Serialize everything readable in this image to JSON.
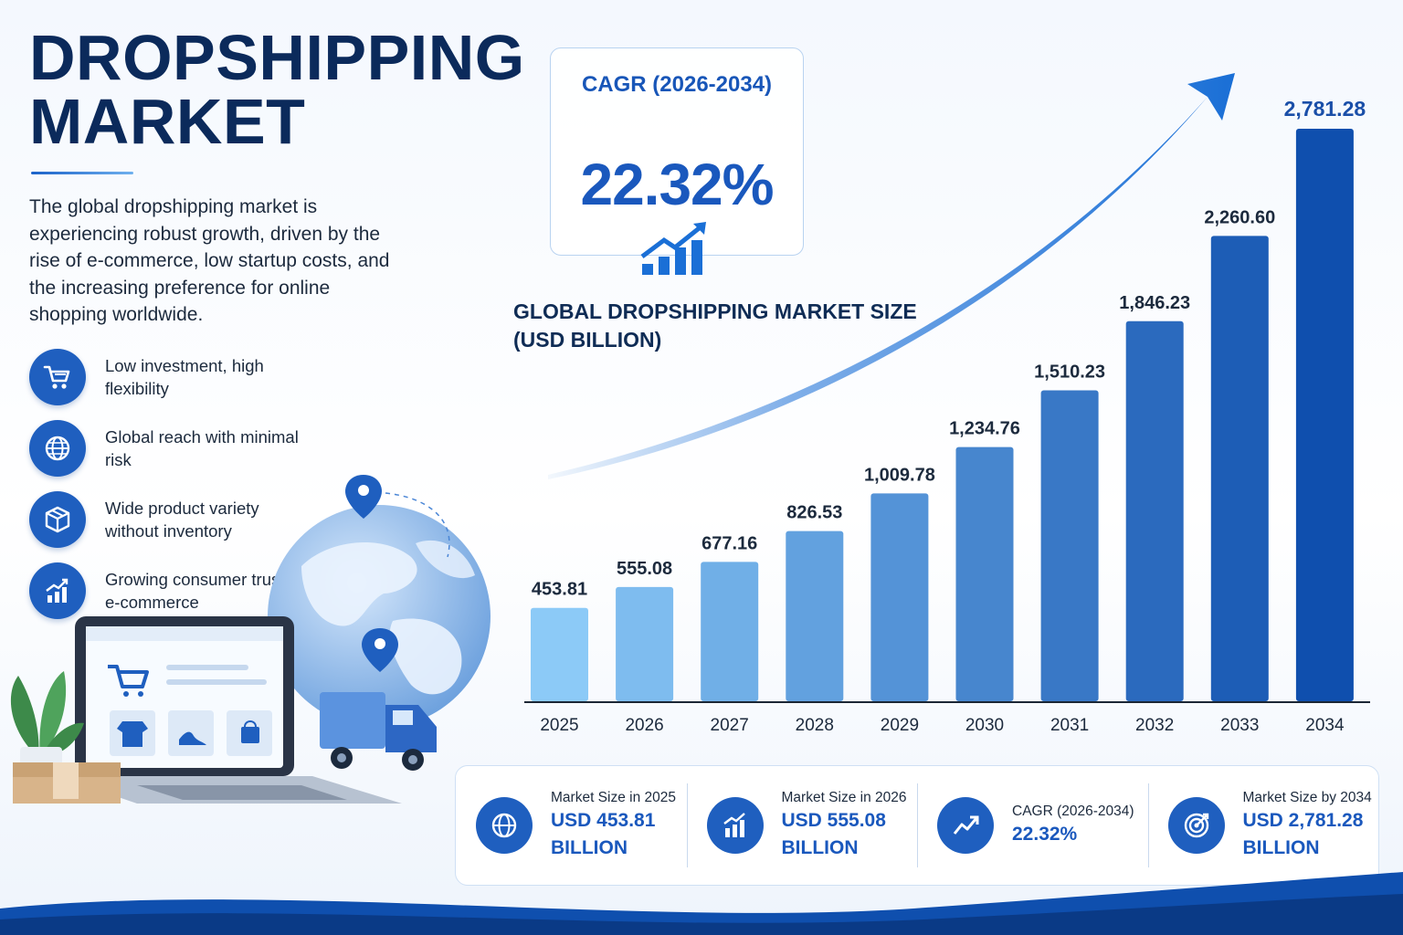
{
  "page": {
    "title_line1": "DROPSHIPPING",
    "title_line2": "MARKET",
    "description": "The global dropshipping market is experiencing robust growth, driven by the rise of e-commerce, low startup costs, and the increasing preference for online shopping worldwide."
  },
  "features": [
    {
      "icon": "shopping-cart-icon",
      "text": "Low investment, high flexibility"
    },
    {
      "icon": "globe-icon",
      "text": "Global reach with minimal risk"
    },
    {
      "icon": "box-icon",
      "text": "Wide product variety without inventory"
    },
    {
      "icon": "growth-chart-icon",
      "text": "Growing consumer trust in e-commerce"
    }
  ],
  "cagr_box": {
    "label": "CAGR (2026-2034)",
    "value": "22.32%"
  },
  "chart_data": {
    "type": "bar",
    "title_line1": "GLOBAL DROPSHIPPING MARKET SIZE",
    "title_line2": "(USD BILLION)",
    "categories": [
      "2025",
      "2026",
      "2027",
      "2028",
      "2029",
      "2030",
      "2031",
      "2032",
      "2033",
      "2034"
    ],
    "values": [
      453.81,
      555.08,
      677.16,
      826.53,
      1009.78,
      1234.76,
      1510.23,
      1846.23,
      2260.6,
      2781.28
    ],
    "value_labels": [
      "453.81",
      "555.08",
      "677.16",
      "826.53",
      "1,009.78",
      "1,234.76",
      "1,510.23",
      "1,846.23",
      "2,260.60",
      "2,781.28"
    ],
    "ylim": [
      0,
      2781.28
    ],
    "grid": false,
    "legend": "none",
    "colors": {
      "light": "#8ccaf7",
      "dark": "#0f4fae",
      "trend_arrow": "#1a6fd6"
    }
  },
  "stats": [
    {
      "icon": "globe-icon",
      "label": "Market Size in 2025",
      "value_line1": "USD 453.81",
      "value_line2": "BILLION"
    },
    {
      "icon": "bar-chart-icon",
      "label": "Market Size in 2026",
      "value_line1": "USD 555.08",
      "value_line2": "BILLION"
    },
    {
      "icon": "trend-arrow-icon",
      "label": "CAGR (2026-2034)",
      "value_line1": "22.32%",
      "value_line2": ""
    },
    {
      "icon": "target-icon",
      "label": "Market Size by 2034",
      "value_line1": "USD 2,781.28",
      "value_line2": "BILLION"
    }
  ],
  "colors": {
    "brand_dark": "#0b2a5b",
    "accent": "#1a58bd",
    "icon_bg": "#1f5fbf"
  }
}
